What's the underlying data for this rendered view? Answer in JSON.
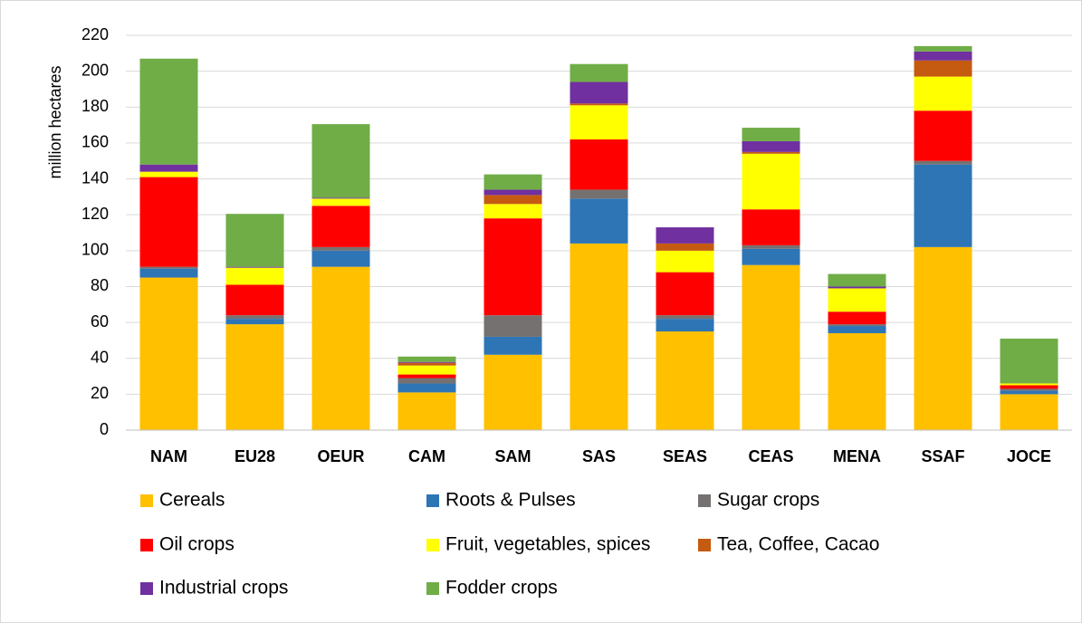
{
  "chart_data": {
    "type": "stacked_bar",
    "y_label": "million hectares",
    "categories": [
      "NAM",
      "EU28",
      "OEUR",
      "CAM",
      "SAM",
      "SAS",
      "SEAS",
      "CEAS",
      "MENA",
      "SSAF",
      "JOCE"
    ],
    "series": [
      {
        "name": "Cereals",
        "color": "#ffc000",
        "values": [
          85,
          59,
          91,
          21,
          42,
          104,
          55,
          92,
          54,
          102,
          20
        ]
      },
      {
        "name": "Roots & Pulses",
        "color": "#2e75b6",
        "values": [
          5,
          3,
          9,
          5,
          10,
          25,
          7,
          9,
          4,
          46,
          2
        ]
      },
      {
        "name": "Sugar crops",
        "color": "#767171",
        "values": [
          1,
          2,
          2,
          3,
          12,
          5,
          2,
          2,
          1,
          2,
          1
        ]
      },
      {
        "name": "Oil crops",
        "color": "#ff0000",
        "values": [
          50,
          17,
          23,
          2,
          54,
          28,
          24,
          20,
          7,
          28,
          2
        ]
      },
      {
        "name": "Fruit, vegetables, spices",
        "color": "#ffff00",
        "values": [
          3,
          9.5,
          4,
          5,
          8,
          19,
          12,
          31,
          13,
          19,
          1
        ]
      },
      {
        "name": "Tea, Coffee, Cacao",
        "color": "#c55a11",
        "values": [
          0,
          0,
          0,
          1.5,
          5,
          1,
          4,
          1,
          0,
          9,
          0
        ]
      },
      {
        "name": "Industrial crops",
        "color": "#7030a0",
        "values": [
          4,
          0.5,
          0.5,
          0.5,
          3,
          12,
          9,
          6,
          1,
          5,
          0
        ]
      },
      {
        "name": "Fodder crops",
        "color": "#70ad47",
        "values": [
          59,
          29.5,
          41,
          3,
          8.5,
          10,
          0,
          7.5,
          7,
          3,
          25
        ]
      }
    ],
    "ylim": [
      0,
      220
    ],
    "yticks": [
      0,
      20,
      40,
      60,
      80,
      100,
      120,
      140,
      160,
      180,
      200,
      220
    ],
    "grid": true
  }
}
